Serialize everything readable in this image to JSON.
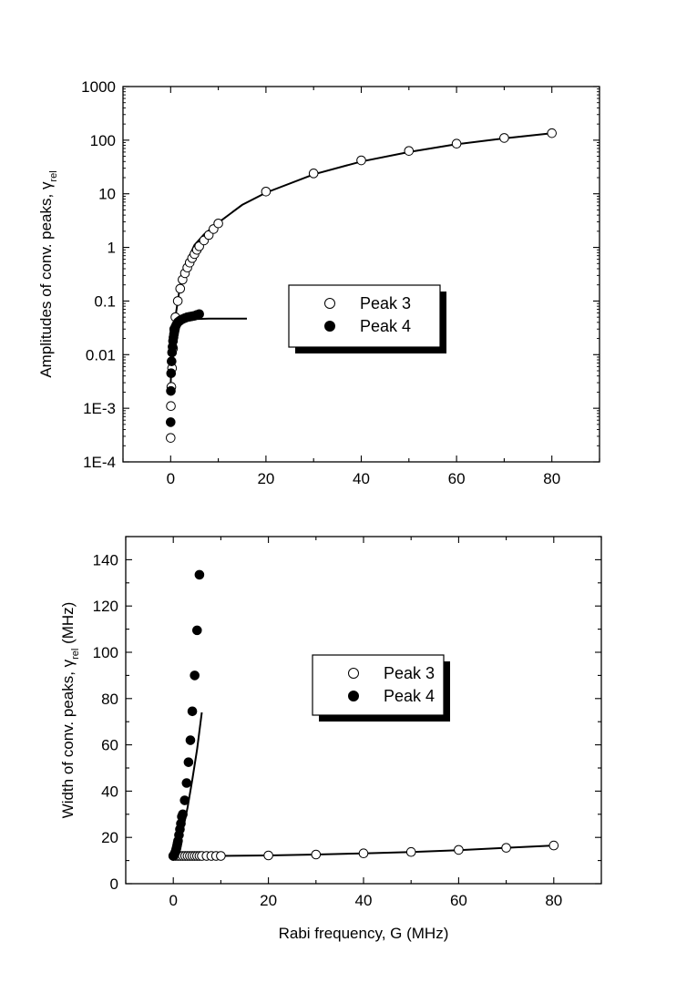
{
  "chart_data": [
    {
      "type": "scatter",
      "title": "",
      "xlabel": "",
      "ylabel": "Amplitudes of conv. peaks, γ",
      "ylabel_sub": "rel",
      "xscale": "linear",
      "yscale": "log",
      "xlim": [
        -10,
        90
      ],
      "ylim": [
        0.0001,
        1000
      ],
      "x_ticks": [
        0,
        20,
        40,
        60,
        80
      ],
      "y_ticks": [
        {
          "value": 0.0001,
          "label": "1E-4"
        },
        {
          "value": 0.001,
          "label": "1E-3"
        },
        {
          "value": 0.01,
          "label": "0.01"
        },
        {
          "value": 0.1,
          "label": "0.1"
        },
        {
          "value": 1,
          "label": "1"
        },
        {
          "value": 10,
          "label": "10"
        },
        {
          "value": 100,
          "label": "100"
        },
        {
          "value": 1000,
          "label": "1000"
        }
      ],
      "grid": false,
      "legend_position": "center-right",
      "series": [
        {
          "name": "Peak 3",
          "marker": "open-circle",
          "x": [
            0,
            0.05,
            0.15,
            0.3,
            0.5,
            0.75,
            1,
            1.5,
            2,
            2.5,
            3,
            3.5,
            4,
            4.5,
            5,
            5.5,
            6,
            7,
            8,
            9,
            10,
            20,
            30,
            40,
            50,
            60,
            70,
            80
          ],
          "y": [
            0.00028,
            0.0011,
            0.0025,
            0.0056,
            0.013,
            0.03,
            0.05,
            0.1,
            0.17,
            0.25,
            0.33,
            0.42,
            0.52,
            0.63,
            0.75,
            0.9,
            1.05,
            1.35,
            1.7,
            2.2,
            2.8,
            11,
            24,
            42,
            63,
            86,
            110,
            135
          ]
        },
        {
          "name": "Peak 4",
          "marker": "filled-circle",
          "x": [
            0,
            0.05,
            0.1,
            0.2,
            0.3,
            0.4,
            0.5,
            0.6,
            0.7,
            0.8,
            0.9,
            1,
            1.2,
            1.5,
            1.8,
            2.1,
            2.5,
            3,
            3.5,
            4,
            4.5,
            5,
            5.5,
            6
          ],
          "y": [
            0.00055,
            0.0021,
            0.0045,
            0.0075,
            0.011,
            0.014,
            0.018,
            0.021,
            0.024,
            0.027,
            0.03,
            0.033,
            0.036,
            0.04,
            0.042,
            0.044,
            0.046,
            0.048,
            0.05,
            0.051,
            0.052,
            0.053,
            0.055,
            0.057
          ]
        }
      ],
      "fits": [
        {
          "name": "Peak 3 fit",
          "x": [
            0.3,
            0.5,
            1,
            2,
            3,
            5,
            7,
            10,
            15,
            20,
            30,
            40,
            50,
            60,
            70,
            80
          ],
          "y": [
            0.0045,
            0.0125,
            0.05,
            0.2,
            0.45,
            1.1,
            1.75,
            2.9,
            6.2,
            10.5,
            23,
            40,
            60,
            84,
            108,
            135
          ]
        },
        {
          "name": "Peak 4 fit",
          "x": [
            0,
            0.3,
            0.6,
            1,
            1.5,
            2,
            3,
            5,
            8,
            12,
            16
          ],
          "y": [
            0.0028,
            0.012,
            0.02,
            0.028,
            0.035,
            0.039,
            0.043,
            0.046,
            0.047,
            0.047,
            0.047
          ]
        }
      ]
    },
    {
      "type": "scatter",
      "title": "",
      "xlabel": "Rabi frequency, G (MHz)",
      "ylabel": "Width of conv. peaks, γ",
      "ylabel_sub": "rel",
      "ylabel_suffix": " (MHz)",
      "xscale": "linear",
      "yscale": "linear",
      "xlim": [
        -10,
        90
      ],
      "ylim": [
        0,
        150
      ],
      "x_ticks": [
        0,
        20,
        40,
        60,
        80
      ],
      "y_ticks": [
        0,
        20,
        40,
        60,
        80,
        100,
        120,
        140
      ],
      "grid": false,
      "legend_position": "center-right",
      "series": [
        {
          "name": "Peak 3",
          "marker": "open-circle",
          "x": [
            0,
            0.5,
            1,
            1.5,
            2,
            2.5,
            3,
            3.5,
            4,
            4.5,
            5,
            5.5,
            6,
            7,
            8,
            9,
            10,
            20,
            30,
            40,
            50,
            60,
            70,
            80
          ],
          "y": [
            12,
            12,
            12,
            12,
            12,
            12,
            12,
            12,
            12,
            12,
            12,
            12,
            12,
            12,
            12,
            12,
            12,
            12.2,
            12.6,
            13.1,
            13.7,
            14.6,
            15.5,
            16.5
          ]
        },
        {
          "name": "Peak 4",
          "marker": "filled-circle",
          "x": [
            0,
            0.1,
            0.2,
            0.3,
            0.4,
            0.5,
            0.6,
            0.7,
            0.8,
            0.9,
            1,
            1.2,
            1.4,
            1.6,
            1.8,
            2,
            2.4,
            2.8,
            3.2,
            3.6,
            4,
            4.5,
            5,
            5.5
          ],
          "y": [
            12,
            12.2,
            12.5,
            13,
            13.5,
            14,
            14.8,
            15.5,
            16.5,
            17.5,
            18.5,
            21,
            23.5,
            26,
            29,
            30,
            36,
            43.5,
            52.5,
            62,
            74.5,
            90,
            109.5,
            133.5
          ]
        }
      ],
      "fits": [
        {
          "name": "Peak 3 fit",
          "x": [
            0,
            10,
            20,
            30,
            40,
            50,
            60,
            70,
            80
          ],
          "y": [
            12,
            12,
            12.2,
            12.6,
            13.1,
            13.7,
            14.5,
            15.5,
            16.5
          ]
        },
        {
          "name": "Peak 4 fit",
          "x": [
            0,
            0.5,
            1,
            2,
            3,
            4,
            5,
            6
          ],
          "y": [
            12,
            13.5,
            16,
            23,
            33,
            45,
            58,
            74
          ]
        }
      ]
    }
  ]
}
